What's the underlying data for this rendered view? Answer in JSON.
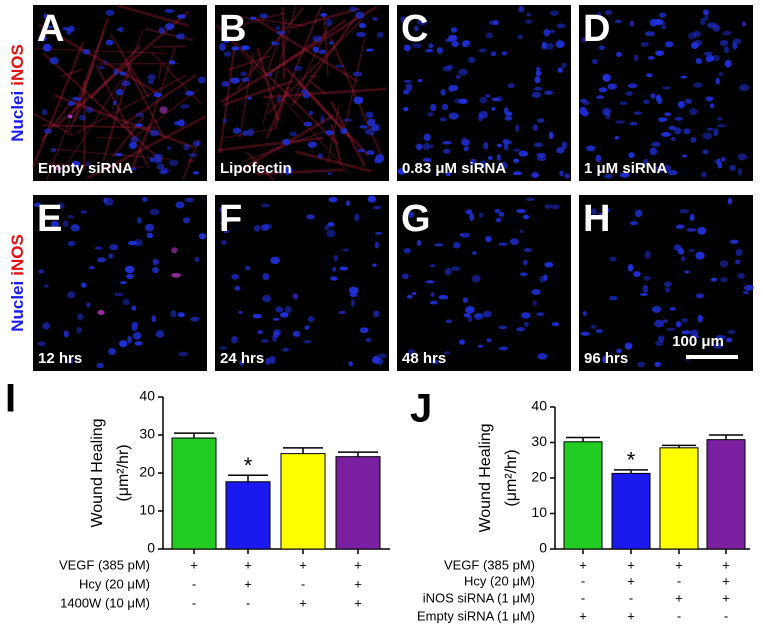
{
  "panels": [
    {
      "letter": "A",
      "caption": "Empty siRNA"
    },
    {
      "letter": "B",
      "caption": "Lipofectin"
    },
    {
      "letter": "C",
      "caption": "0.83 μM siRNA"
    },
    {
      "letter": "D",
      "caption": "1 μM siRNA"
    },
    {
      "letter": "E",
      "caption": "12 hrs"
    },
    {
      "letter": "F",
      "caption": "24 hrs"
    },
    {
      "letter": "G",
      "caption": "48 hrs"
    },
    {
      "letter": "H",
      "caption": "96 hrs"
    }
  ],
  "row_labels": [
    [
      "Nuclei",
      "iNOS"
    ],
    [
      "Nuclei",
      "iNOS"
    ]
  ],
  "scale_bar": "100 μm",
  "chart_data": [
    {
      "type": "bar",
      "panel": "I",
      "ylabel": [
        "Wound Healing",
        "(μm²/hr)"
      ],
      "ylim": [
        0,
        40
      ],
      "yticks": [
        0,
        10,
        20,
        30,
        40
      ],
      "series": [
        {
          "values": [
            29.2,
            17.7,
            25.1,
            24.3
          ],
          "errors": [
            1.3,
            1.7,
            1.5,
            1.2
          ],
          "colors": [
            "#22cc22",
            "#1a1aee",
            "#ffff00",
            "#7a1fa0"
          ]
        }
      ],
      "annotation": "*",
      "conditions": [
        {
          "label": "VEGF (385 pM)",
          "signs": [
            "+",
            "+",
            "+",
            "+"
          ]
        },
        {
          "label": "Hcy (20 μM)",
          "signs": [
            "-",
            "+",
            "-",
            "+"
          ]
        },
        {
          "label": "1400W (10 μM)",
          "signs": [
            "-",
            "-",
            "+",
            "+"
          ]
        }
      ]
    },
    {
      "type": "bar",
      "panel": "J",
      "ylabel": [
        "Wound Healing",
        "(μm²/hr)"
      ],
      "ylim": [
        0,
        40
      ],
      "yticks": [
        0,
        10,
        20,
        30,
        40
      ],
      "series": [
        {
          "values": [
            30.2,
            21.3,
            28.5,
            30.8
          ],
          "errors": [
            1.2,
            1.0,
            0.7,
            1.3
          ],
          "colors": [
            "#22cc22",
            "#1a1aee",
            "#ffff00",
            "#7a1fa0"
          ]
        }
      ],
      "annotation": "*",
      "conditions": [
        {
          "label": "VEGF (385 pM)",
          "signs": [
            "+",
            "+",
            "+",
            "+"
          ]
        },
        {
          "label": "Hcy (20 μM)",
          "signs": [
            "-",
            "+",
            "-",
            "+"
          ]
        },
        {
          "label": "iNOS siRNA (1 μM)",
          "signs": [
            "-",
            "-",
            "+",
            "+"
          ]
        },
        {
          "label": "Empty siRNA  (1 μM)",
          "signs": [
            "+",
            "+",
            "-",
            "-"
          ]
        }
      ]
    }
  ]
}
